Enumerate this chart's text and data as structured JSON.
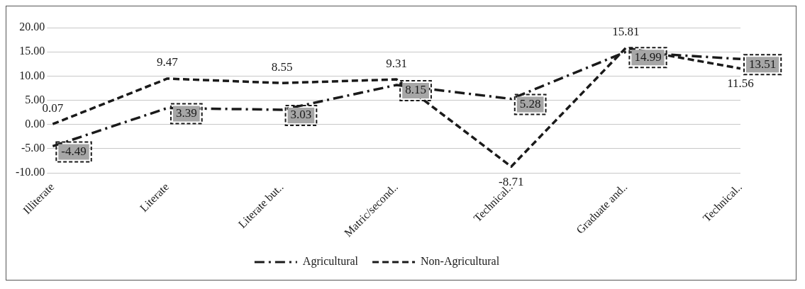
{
  "chart_data": {
    "type": "line",
    "categories": [
      "Illiterate",
      "Literate",
      "Literate but..",
      "Matric/second..",
      "Technical..",
      "Graduate and..",
      "Technical.."
    ],
    "series": [
      {
        "name": "Agricultural",
        "color": "#1a1a1a",
        "line_style": "dashdot",
        "values": [
          -4.49,
          3.39,
          3.03,
          8.15,
          5.28,
          14.99,
          13.51
        ]
      },
      {
        "name": "Non-Agricultural",
        "color": "#1a1a1a",
        "line_style": "dashed",
        "values": [
          0.07,
          9.47,
          8.55,
          9.31,
          -8.71,
          15.81,
          11.56
        ]
      }
    ],
    "ylim": [
      -10,
      20
    ],
    "yticks": [
      {
        "value": -10,
        "label": "-10.00"
      },
      {
        "value": -5,
        "label": "-5.00"
      },
      {
        "value": 0,
        "label": "0.00"
      },
      {
        "value": 5,
        "label": "5.00"
      },
      {
        "value": 10,
        "label": "10.00"
      },
      {
        "value": 15,
        "label": "15.00"
      },
      {
        "value": 20,
        "label": "20.00"
      }
    ],
    "grid": "y",
    "legend": "bottom",
    "data_labels": true
  }
}
